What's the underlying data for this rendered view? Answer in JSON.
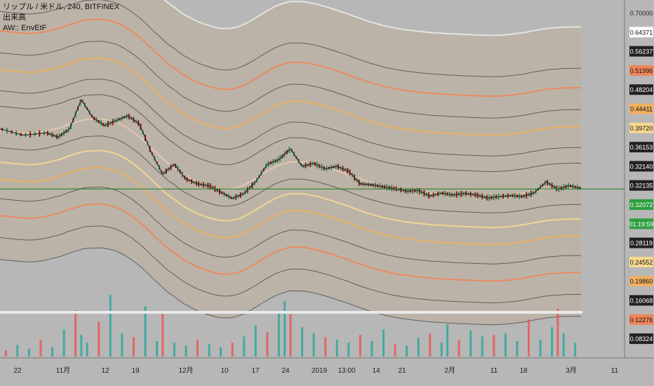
{
  "legend": {
    "symbol": "リップル / 米ドル, 240, BITFINEX",
    "volume": "出来高",
    "indicator": "AW:: EnvEtF"
  },
  "colors": {
    "background": "#b7b7b7",
    "price_line": "#1e7a1e",
    "candle_up": "#2e8b57",
    "candle_down": "#8b1a1a",
    "vol_up": "#26a69a",
    "vol_down": "#ef5350",
    "bands": [
      "#e8e8e8",
      "#555555",
      "#555555",
      "#f0855a",
      "#555555",
      "#f0b060",
      "#555555",
      "#f7d890",
      "#e8c8b0"
    ]
  },
  "chart_data": {
    "type": "line",
    "description_of_series": "XRP/USD 4h close with 15 envelope bands and volume",
    "x_ticks": [
      "22",
      "11月",
      "12",
      "19",
      "12月",
      "10",
      "17",
      "24",
      "2019",
      "13:00",
      "14",
      "21",
      "2月",
      "11",
      "18",
      "3月",
      "11"
    ],
    "y_ticks": [
      "0.70000",
      "0.64371",
      "0.56237",
      "0.51996",
      "0.48204",
      "0.44411",
      "0.39720",
      "0.36153",
      "0.32140",
      "0.32135",
      "0.32072",
      "01:19:59",
      "0.28119",
      "0.24552",
      "0.19860",
      "0.16068",
      "0.12276",
      "0.08324"
    ],
    "y_tick_styles": [
      "plain",
      "white",
      "dark",
      "orange",
      "dark",
      "yellow",
      "lightyellow",
      "dark",
      "dark",
      "dark",
      "green",
      "green",
      "dark",
      "lightyellow",
      "yellow",
      "dark",
      "orange",
      "dark"
    ],
    "last_price": 0.3214,
    "ylim": [
      0.075,
      0.71
    ],
    "price_x": [
      0,
      0.04,
      0.08,
      0.1,
      0.12,
      0.14,
      0.16,
      0.18,
      0.2,
      0.22,
      0.24,
      0.26,
      0.28,
      0.3,
      0.32,
      0.34,
      0.36,
      0.38,
      0.4,
      0.42,
      0.44,
      0.46,
      0.48,
      0.5,
      0.52,
      0.54,
      0.56,
      0.58,
      0.6,
      0.62,
      0.64,
      0.66,
      0.68,
      0.7,
      0.72,
      0.74,
      0.76,
      0.78,
      0.8,
      0.82,
      0.84,
      0.86,
      0.88,
      0.9,
      0.92,
      0.94,
      0.96,
      0.98,
      1.0
    ],
    "price_values": [
      0.445,
      0.432,
      0.437,
      0.428,
      0.445,
      0.505,
      0.468,
      0.452,
      0.462,
      0.472,
      0.455,
      0.398,
      0.352,
      0.372,
      0.342,
      0.332,
      0.328,
      0.315,
      0.302,
      0.312,
      0.336,
      0.372,
      0.382,
      0.404,
      0.368,
      0.374,
      0.363,
      0.368,
      0.358,
      0.332,
      0.33,
      0.326,
      0.322,
      0.317,
      0.318,
      0.307,
      0.313,
      0.309,
      0.312,
      0.309,
      0.303,
      0.306,
      0.308,
      0.306,
      0.314,
      0.336,
      0.321,
      0.328,
      0.323
    ],
    "band_offsets": [
      0.33,
      0.245,
      0.205,
      0.16,
      0.125,
      0.082,
      0.05,
      0.0,
      -0.035,
      -0.065,
      -0.1,
      -0.14,
      -0.175,
      -0.22,
      -0.265
    ],
    "band_styles": [
      0,
      1,
      3,
      1,
      5,
      6,
      1,
      8,
      1,
      7,
      5,
      1,
      3,
      1,
      1
    ],
    "volume_x": [
      0.01,
      0.03,
      0.05,
      0.07,
      0.09,
      0.11,
      0.13,
      0.14,
      0.15,
      0.17,
      0.19,
      0.21,
      0.23,
      0.25,
      0.27,
      0.28,
      0.3,
      0.32,
      0.34,
      0.36,
      0.38,
      0.4,
      0.42,
      0.44,
      0.46,
      0.48,
      0.49,
      0.5,
      0.52,
      0.54,
      0.56,
      0.58,
      0.6,
      0.62,
      0.64,
      0.66,
      0.68,
      0.7,
      0.72,
      0.74,
      0.76,
      0.77,
      0.79,
      0.81,
      0.83,
      0.85,
      0.87,
      0.89,
      0.91,
      0.93,
      0.95,
      0.96,
      0.97,
      0.99
    ],
    "volume_values": [
      8,
      15,
      10,
      22,
      12,
      35,
      60,
      28,
      18,
      45,
      80,
      30,
      25,
      65,
      20,
      55,
      18,
      14,
      22,
      16,
      12,
      18,
      26,
      40,
      32,
      58,
      72,
      55,
      38,
      30,
      25,
      22,
      18,
      28,
      20,
      35,
      16,
      14,
      24,
      30,
      18,
      42,
      22,
      34,
      26,
      28,
      30,
      20,
      48,
      22,
      38,
      62,
      30,
      18
    ]
  }
}
